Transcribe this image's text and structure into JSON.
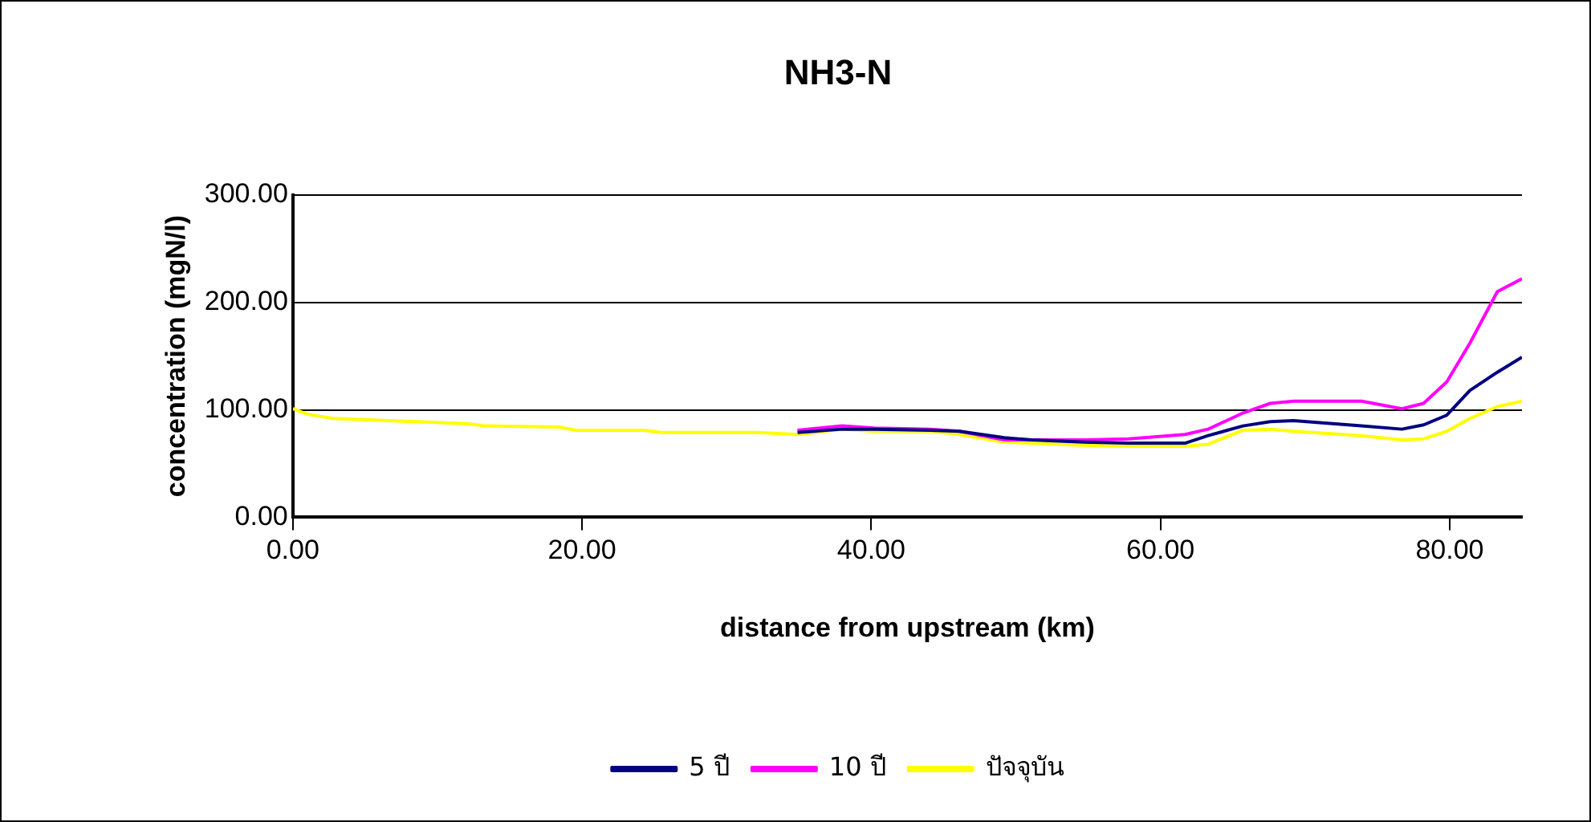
{
  "chart_data": {
    "type": "line",
    "title": "NH3-N",
    "xlabel": "distance from upstream (km)",
    "ylabel": "concentration (mgN/l)",
    "x": [
      0,
      1,
      2.75,
      6.7,
      12.2,
      13.3,
      18.4,
      19.6,
      24.3,
      25.5,
      32.2,
      34.9,
      38,
      40.2,
      44.1,
      46.1,
      49.2,
      51.1,
      54.7,
      57.8,
      61.7,
      63.3,
      65.7,
      67.6,
      69.2,
      73.9,
      76.7,
      78.2,
      79.8,
      81.4,
      83.3,
      85
    ],
    "series": [
      {
        "name": "5 ปี",
        "color": "#000080",
        "values": [
          null,
          null,
          null,
          null,
          null,
          null,
          null,
          null,
          null,
          null,
          null,
          79,
          82,
          82,
          81,
          80,
          74,
          72,
          70,
          69,
          69,
          76,
          85,
          89,
          90,
          85,
          82,
          86,
          95,
          118,
          135,
          149
        ]
      },
      {
        "name": "10 ปี",
        "color": "#ff00ff",
        "values": [
          null,
          null,
          null,
          null,
          null,
          null,
          null,
          null,
          null,
          null,
          null,
          81,
          85,
          83,
          82,
          80,
          72,
          72,
          72,
          73,
          77,
          82,
          97,
          106,
          108,
          108,
          101,
          106,
          126,
          162,
          210,
          222
        ]
      },
      {
        "name": "ปัจจุบัน",
        "color": "#ffff00",
        "values": [
          101,
          96,
          92,
          90,
          87,
          85,
          84,
          81,
          81,
          79,
          79,
          77,
          82,
          80,
          80,
          77,
          70,
          69,
          67,
          66,
          66,
          68,
          81,
          82,
          80,
          76,
          72,
          73,
          80,
          92,
          103,
          108
        ]
      }
    ],
    "xlim": [
      0,
      85
    ],
    "xticks": [
      {
        "value": 0,
        "label": "0.00"
      },
      {
        "value": 20,
        "label": "20.00"
      },
      {
        "value": 40,
        "label": "40.00"
      },
      {
        "value": 60,
        "label": "60.00"
      },
      {
        "value": 80,
        "label": "80.00"
      }
    ],
    "ylim": [
      0,
      300
    ],
    "yticks": [
      {
        "value": 0,
        "label": "0.00"
      },
      {
        "value": 100,
        "label": "100.00"
      },
      {
        "value": 200,
        "label": "200.00"
      },
      {
        "value": 300,
        "label": "300.00"
      }
    ],
    "grid": "y",
    "legend": "bottom",
    "marker": "none",
    "line_style": "solid"
  }
}
